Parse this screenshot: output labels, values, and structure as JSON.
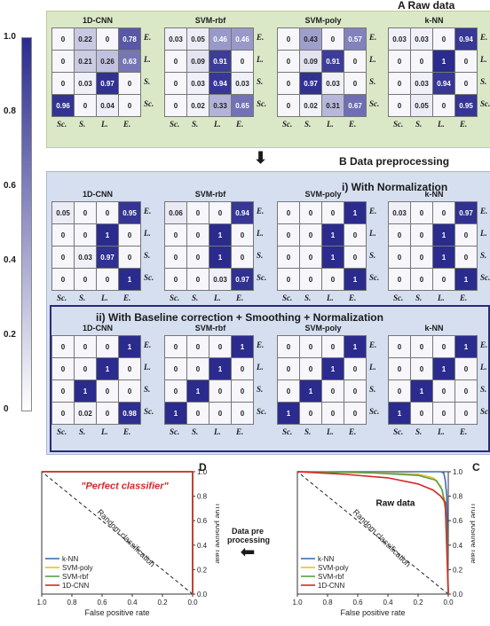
{
  "headers": {
    "a": "A  Raw data",
    "b": "B  Data preprocessing",
    "bi": "i)  With Normalization",
    "bii": "ii)  With Baseline correction + Smoothing + Normalization",
    "c": "C",
    "d": "D"
  },
  "colorbar": {
    "ticks": [
      "1.0",
      "0.8",
      "0.6",
      "0.4",
      "0.2",
      "0"
    ],
    "color_low": "#ffffff",
    "color_high": "#2b2b8e"
  },
  "class_labels": [
    "E.",
    "L.",
    "S.",
    "Sc."
  ],
  "model_names": [
    "k-NN",
    "SVM-poly",
    "SVM-rbf",
    "1D-CNN"
  ],
  "matrices": {
    "raw": [
      [
        [
          0.94,
          0,
          0.03,
          0.03
        ],
        [
          0,
          1,
          0,
          0
        ],
        [
          0,
          0.94,
          0.03,
          0
        ],
        [
          0.95,
          0,
          0.05,
          0
        ]
      ],
      [
        [
          0.57,
          0,
          0.43,
          0
        ],
        [
          0,
          0.91,
          0.09,
          0
        ],
        [
          0,
          0.03,
          0.97,
          0
        ],
        [
          0.67,
          0.31,
          0.02,
          0
        ]
      ],
      [
        [
          0.46,
          0.46,
          0.05,
          0.03
        ],
        [
          0,
          0.91,
          0.09,
          0
        ],
        [
          0.03,
          0.94,
          0.03,
          0
        ],
        [
          0.65,
          0.33,
          0.02,
          0
        ]
      ],
      [
        [
          0.78,
          0,
          0.22,
          0
        ],
        [
          0.63,
          0.26,
          0.21,
          0
        ],
        [
          0,
          0.97,
          0.03,
          0
        ],
        [
          0,
          0.04,
          0,
          0.96
        ]
      ]
    ],
    "norm": [
      [
        [
          0.97,
          0,
          0,
          0.03
        ],
        [
          0,
          1,
          0,
          0
        ],
        [
          0,
          1,
          0,
          0
        ],
        [
          1,
          0,
          0,
          0
        ]
      ],
      [
        [
          1,
          0,
          0,
          0
        ],
        [
          0,
          1,
          0,
          0
        ],
        [
          0,
          1,
          0,
          0
        ],
        [
          1,
          0,
          0,
          0
        ]
      ],
      [
        [
          0.94,
          0,
          0,
          0.06
        ],
        [
          0,
          1,
          0,
          0
        ],
        [
          0,
          1,
          0,
          0
        ],
        [
          0.97,
          0.03,
          0,
          0
        ]
      ],
      [
        [
          0.95,
          0,
          0,
          0.05
        ],
        [
          0,
          1,
          0,
          0
        ],
        [
          0,
          0.97,
          0.03,
          0
        ],
        [
          1,
          0,
          0,
          0
        ]
      ]
    ],
    "full": [
      [
        [
          1,
          0,
          0,
          0
        ],
        [
          0,
          1,
          0,
          0
        ],
        [
          0,
          0,
          1,
          0
        ],
        [
          0,
          0,
          0,
          1
        ]
      ],
      [
        [
          1,
          0,
          0,
          0
        ],
        [
          0,
          1,
          0,
          0
        ],
        [
          0,
          0,
          1,
          0
        ],
        [
          0,
          0,
          0,
          1
        ]
      ],
      [
        [
          1,
          0,
          0,
          0
        ],
        [
          0,
          1,
          0,
          0
        ],
        [
          0,
          0,
          1,
          0
        ],
        [
          0,
          0,
          0,
          1
        ]
      ],
      [
        [
          1,
          0,
          0,
          0
        ],
        [
          0,
          1,
          0,
          0
        ],
        [
          0,
          0,
          1,
          0
        ],
        [
          0.98,
          0,
          0.02,
          0
        ]
      ]
    ]
  },
  "chart_data": [
    {
      "type": "line",
      "panel": "C",
      "annotation": "Raw data",
      "diagonal_label": "Random classification",
      "xlabel": "False positive rate",
      "ylabel": "True positive rate",
      "xlim": [
        1.0,
        0.0
      ],
      "ylim": [
        0.0,
        1.0
      ],
      "xticks": [
        "1.0",
        "0.8",
        "0.6",
        "0.4",
        "0.2",
        "0.0"
      ],
      "yticks": [
        "0.0",
        "0.2",
        "0.4",
        "0.6",
        "0.8",
        "1.0"
      ],
      "legend_position": "bottom-left",
      "series": [
        {
          "name": "k-NN",
          "color": "#3e6db5",
          "x": [
            0,
            0.01,
            0.02,
            0.03,
            0.05,
            1.0
          ],
          "y": [
            0,
            0.8,
            0.93,
            0.99,
            1.0,
            1.0
          ]
        },
        {
          "name": "SVM-poly",
          "color": "#e8c21a",
          "x": [
            0,
            0.01,
            0.02,
            0.05,
            0.1,
            0.2,
            0.4,
            1.0
          ],
          "y": [
            0,
            0.4,
            0.75,
            0.88,
            0.95,
            0.98,
            0.99,
            1.0
          ]
        },
        {
          "name": "SVM-rbf",
          "color": "#5a9e4a",
          "x": [
            0,
            0.01,
            0.02,
            0.04,
            0.08,
            0.2,
            0.5,
            1.0
          ],
          "y": [
            0,
            0.55,
            0.7,
            0.85,
            0.93,
            0.97,
            0.99,
            1.0
          ]
        },
        {
          "name": "1D-CNN",
          "color": "#d62728",
          "x": [
            0,
            0.02,
            0.05,
            0.1,
            0.2,
            0.4,
            0.7,
            1.0
          ],
          "y": [
            0,
            0.75,
            0.8,
            0.85,
            0.9,
            0.95,
            0.98,
            1.0
          ]
        }
      ]
    },
    {
      "type": "line",
      "panel": "D",
      "annotation": "\"Perfect classifier\"",
      "diagonal_label": "Random classification",
      "xlabel": "False positive rate",
      "ylabel": "True positive rate",
      "xlim": [
        1.0,
        0.0
      ],
      "ylim": [
        0.0,
        1.0
      ],
      "xticks": [
        "1.0",
        "0.8",
        "0.6",
        "0.4",
        "0.2",
        "0.0"
      ],
      "yticks": [
        "0.0",
        "0.2",
        "0.4",
        "0.6",
        "0.8",
        "1.0"
      ],
      "legend_position": "bottom-left",
      "series": [
        {
          "name": "k-NN",
          "color": "#3e6db5",
          "x": [
            0,
            0,
            1.0
          ],
          "y": [
            0,
            1.0,
            1.0
          ]
        },
        {
          "name": "SVM-poly",
          "color": "#e8c21a",
          "x": [
            0,
            0,
            1.0
          ],
          "y": [
            0,
            1.0,
            1.0
          ]
        },
        {
          "name": "SVM-rbf",
          "color": "#5a9e4a",
          "x": [
            0,
            0,
            1.0
          ],
          "y": [
            0,
            1.0,
            1.0
          ]
        },
        {
          "name": "1D-CNN",
          "color": "#d62728",
          "x": [
            0,
            0,
            1.0
          ],
          "y": [
            0,
            1.0,
            1.0
          ]
        }
      ]
    }
  ],
  "arrow_label": [
    "Data pre",
    "processing"
  ]
}
